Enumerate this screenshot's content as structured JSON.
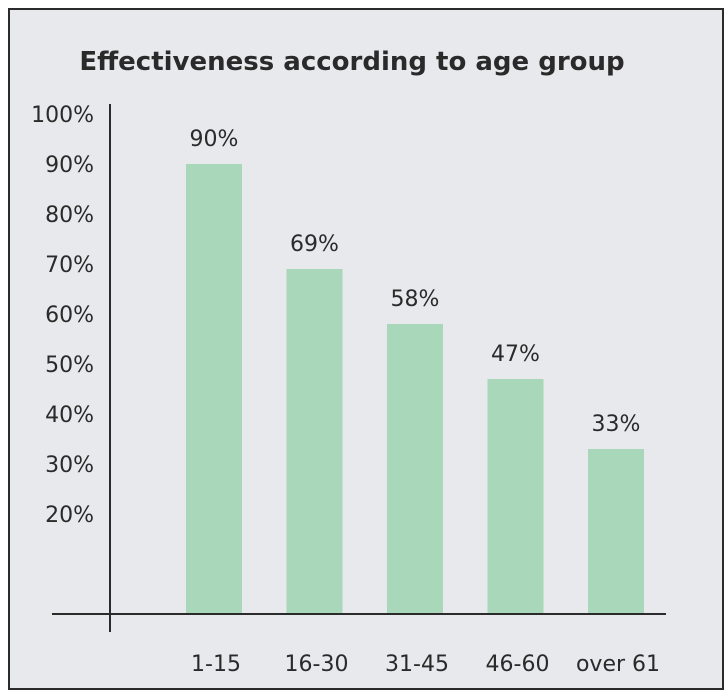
{
  "chart_data": {
    "type": "bar",
    "title": "Effectiveness according to age group",
    "categories": [
      "1-15",
      "16-30",
      "31-45",
      "46-60",
      "over 61"
    ],
    "values": [
      90,
      69,
      58,
      47,
      33
    ],
    "data_labels": [
      "90%",
      "69%",
      "58%",
      "47%",
      "33%"
    ],
    "y_ticks": [
      20,
      30,
      40,
      50,
      60,
      70,
      80,
      90,
      100
    ],
    "y_tick_labels": [
      "20%",
      "30%",
      "40%",
      "50%",
      "60%",
      "70%",
      "80%",
      "90%",
      "100%"
    ],
    "ylim": [
      0,
      100
    ],
    "xlabel": "",
    "ylabel": "",
    "grid": false,
    "bar_color": "#a8d8b9",
    "background_color": "#e8e9ec",
    "axis_color": "#2b2b2b"
  }
}
